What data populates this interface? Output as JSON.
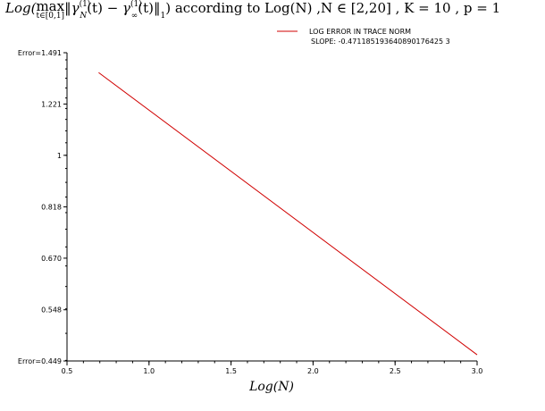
{
  "chart_data": {
    "type": "line",
    "title": {
      "prefix": "Log(",
      "max": "max",
      "max_sub": "t∈[0,1]",
      "gamma_N": "γ",
      "gamma_N_sub": "N",
      "gamma_N_sup": "(1)",
      "t1": "(t) − ",
      "gamma_inf": "γ",
      "gamma_inf_sub": "∞",
      "gamma_inf_sup": "(1)",
      "t2": "(t)",
      "norm_sub": "1",
      "rest": ") according to Log(N) ,N ∈ [2,20] , K = 10 , p = 1"
    },
    "xlabel": "Log(N)",
    "ylabel": "",
    "xlim": [
      0.5,
      3.0
    ],
    "ylim_log": [
      0.449,
      1.491
    ],
    "y_scale": "log",
    "grid": false,
    "legend_position": "top-right",
    "x_ticks": [
      "0.5",
      "1.0",
      "1.5",
      "2.0",
      "2.5",
      "3.0"
    ],
    "x_tick_values": [
      0.5,
      1.0,
      1.5,
      2.0,
      2.5,
      3.0
    ],
    "y_ticks": [
      "Error=0.449",
      "0.548",
      "0.670",
      "0.818",
      "1",
      "1.221",
      "Error=1.491"
    ],
    "y_tick_values": [
      0.449,
      0.548,
      0.67,
      0.818,
      1.0,
      1.221,
      1.491
    ],
    "series": [
      {
        "name": "LOG ERROR IN TRACE NORM",
        "color": "#d00000",
        "x": [
          0.693,
          3.0
        ],
        "y": [
          1.38,
          0.46
        ]
      }
    ],
    "annotation": "SLOPE: -0.471185193640890176425 3"
  }
}
